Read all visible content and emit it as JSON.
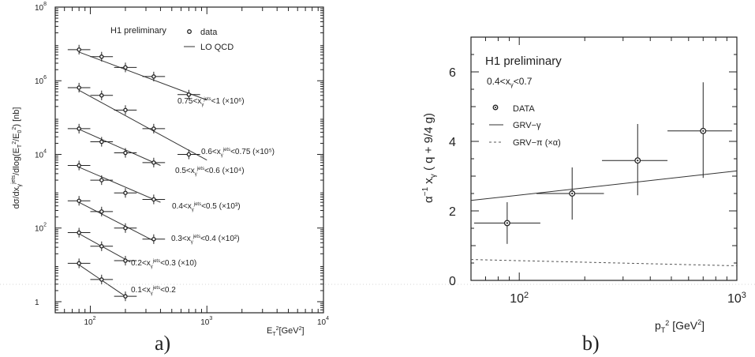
{
  "chart_data": [
    {
      "type": "scatter",
      "panel_label": "a)",
      "title": "H1 preliminary",
      "xlabel": "E_T^2 [GeV^2]",
      "ylabel": "dσ/dx_γ^jets/dlog(E_T^2/E_0^2) [nb]",
      "log_x": true,
      "log_y": true,
      "xlim": [
        50,
        10000
      ],
      "ylim": [
        0.5,
        100000000
      ],
      "x_ticks": [
        {
          "value": 100,
          "base": "10",
          "exp": "2"
        },
        {
          "value": 1000,
          "base": "10",
          "exp": "3"
        },
        {
          "value": 10000,
          "base": "10",
          "exp": "4"
        }
      ],
      "y_ticks": [
        {
          "value": 1,
          "base": "1",
          "exp": ""
        },
        {
          "value": 100,
          "base": "10",
          "exp": "2"
        },
        {
          "value": 10000,
          "base": "10",
          "exp": "4"
        },
        {
          "value": 1000000,
          "base": "10",
          "exp": "6"
        },
        {
          "value": 100000000,
          "base": "10",
          "exp": "8"
        }
      ],
      "legend": [
        {
          "symbol": "point",
          "label": "data"
        },
        {
          "symbol": "line",
          "label": "LO QCD"
        }
      ],
      "series": [
        {
          "name": "0.75<x_γ^jets<1 (×10^6)",
          "label_prefix": "0.75<x",
          "label_suffix": "<1 (×10⁶)",
          "x": [
            80,
            125,
            200,
            350,
            700
          ],
          "y": [
            7000000,
            4500000,
            2300000,
            1300000,
            420000
          ],
          "fit_x": [
            80,
            1000
          ],
          "fit_y": [
            6000000,
            300000
          ]
        },
        {
          "name": "0.6<x_γ^jets<0.75 (×10^5)",
          "label_prefix": "0.6<x",
          "label_suffix": "<0.75 (×10⁵)",
          "x": [
            80,
            125,
            200,
            350,
            700
          ],
          "y": [
            650000,
            400000,
            160000,
            50000,
            10000
          ],
          "fit_x": [
            80,
            1000
          ],
          "fit_y": [
            550000,
            7000
          ]
        },
        {
          "name": "0.5<x_γ^jets<0.6 (×10^4)",
          "label_prefix": "0.5<x",
          "label_suffix": "<0.6 (×10⁴)",
          "x": [
            80,
            125,
            200,
            350
          ],
          "y": [
            50000,
            22000,
            11000,
            6000
          ],
          "fit_x": [
            80,
            400
          ],
          "fit_y": [
            48000,
            5000
          ]
        },
        {
          "name": "0.4<x_γ^jets<0.5 (×10^3)",
          "label_prefix": "0.4<x",
          "label_suffix": "<0.5 (×10³)",
          "x": [
            80,
            125,
            200,
            350
          ],
          "y": [
            5000,
            2000,
            900,
            600
          ],
          "fit_x": [
            80,
            400
          ],
          "fit_y": [
            4500,
            500
          ]
        },
        {
          "name": "0.3<x_γ^jets<0.4 (×10^2)",
          "label_prefix": "0.3<x",
          "label_suffix": "<0.4 (×10²)",
          "x": [
            80,
            125,
            200,
            350
          ],
          "y": [
            550,
            280,
            100,
            50
          ],
          "fit_x": [
            80,
            350
          ],
          "fit_y": [
            500,
            45
          ]
        },
        {
          "name": "0.2<x_γ^jets<0.3 (×10)",
          "label_prefix": "0.2<x",
          "label_suffix": "<0.3 (×10)",
          "x": [
            80,
            125,
            200
          ],
          "y": [
            75,
            32,
            13
          ],
          "fit_x": [
            80,
            220
          ],
          "fit_y": [
            70,
            12
          ]
        },
        {
          "name": "0.1<x_γ^jets<0.2",
          "label_prefix": "0.1<x",
          "label_suffix": "<0.2",
          "x": [
            80,
            125,
            200
          ],
          "y": [
            11,
            4,
            1.4
          ],
          "fit_x": [
            80,
            200
          ],
          "fit_y": [
            10,
            1.4
          ]
        }
      ]
    },
    {
      "type": "scatter",
      "panel_label": "b)",
      "title": "H1 preliminary",
      "subtitle": "0.4<x_γ<0.7",
      "xlabel": "p_T^2 [GeV^2]",
      "ylabel": "α^-1 x_γ (q + 9/4 g)",
      "log_x": true,
      "xlim": [
        60,
        1000
      ],
      "ylim": [
        0,
        7
      ],
      "x_ticks": [
        {
          "value": 100,
          "base": "10",
          "exp": "2"
        },
        {
          "value": 1000,
          "base": "10",
          "exp": "3"
        }
      ],
      "y_ticks": [
        0,
        2,
        4,
        6
      ],
      "legend": [
        {
          "symbol": "point",
          "label": "DATA"
        },
        {
          "symbol": "line",
          "label": "GRV−γ"
        },
        {
          "symbol": "dash",
          "label": "GRV−π (×α)"
        }
      ],
      "data": {
        "x": [
          88,
          175,
          350,
          700
        ],
        "y": [
          1.65,
          2.5,
          3.45,
          4.3
        ],
        "x_low": [
          62,
          120,
          240,
          480
        ],
        "x_high": [
          125,
          245,
          480,
          950
        ],
        "y_low": [
          1.05,
          1.75,
          2.45,
          2.95
        ],
        "y_high": [
          2.25,
          3.25,
          4.5,
          5.7
        ]
      },
      "curve_grv_gamma": {
        "x": [
          60,
          1000
        ],
        "y": [
          2.3,
          3.15
        ]
      },
      "curve_grv_pi": {
        "x": [
          60,
          1000
        ],
        "y": [
          0.6,
          0.42
        ]
      }
    }
  ]
}
